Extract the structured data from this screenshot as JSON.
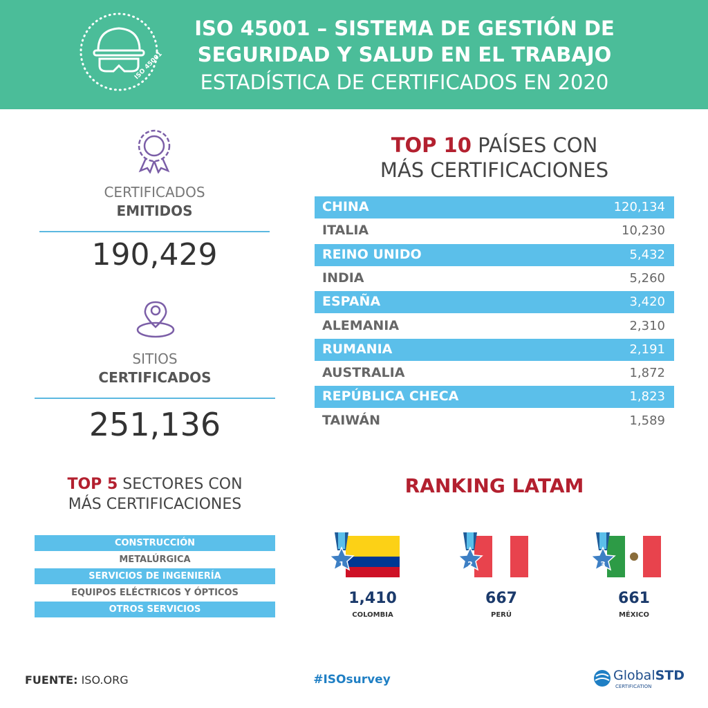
{
  "header": {
    "title_line1": "ISO 45001 – SISTEMA DE GESTIÓN DE",
    "title_line2": "SEGURIDAD Y SALUD EN EL TRABAJO",
    "subtitle": "ESTADÍSTICA DE CERTIFICADOS EN 2020",
    "badge_text": "ISO 45001"
  },
  "stats": [
    {
      "label_light": "CERTIFICADOS",
      "label_bold": "EMITIDOS",
      "value": "190,429"
    },
    {
      "label_light": "SITIOS",
      "label_bold": "CERTIFICADOS",
      "value": "251,136"
    }
  ],
  "top_countries": {
    "title_highlight": "TOP 10",
    "title_rest": "PAÍSES CON",
    "title_line2": "MÁS CERTIFICACIONES",
    "rows": [
      [
        "CHINA",
        "120,134"
      ],
      [
        "ITALIA",
        "10,230"
      ],
      [
        "REINO UNIDO",
        "5,432"
      ],
      [
        "INDIA",
        "5,260"
      ],
      [
        "ESPAÑA",
        "3,420"
      ],
      [
        "ALEMANIA",
        "2,310"
      ],
      [
        "RUMANIA",
        "2,191"
      ],
      [
        "AUSTRALIA",
        "1,872"
      ],
      [
        "REPÚBLICA CHECA",
        "1,823"
      ],
      [
        "TAIWÁN",
        "1,589"
      ]
    ]
  },
  "top_sectors": {
    "title_highlight": "TOP 5",
    "title_rest": "SECTORES CON",
    "title_line2": "MÁS CERTIFICACIONES",
    "items": [
      "CONSTRUCCIÓN",
      "METALÚRGICA",
      "SERVICIOS DE INGENIERÍA",
      "EQUIPOS ELÉCTRICOS Y ÓPTICOS",
      "OTROS SERVICIOS"
    ]
  },
  "ranking": {
    "title": "RANKING LATAM",
    "items": [
      {
        "rank": "1",
        "value": "1,410",
        "country": "COLOMBIA"
      },
      {
        "rank": "2",
        "value": "667",
        "country": "PERÚ"
      },
      {
        "rank": "3",
        "value": "661",
        "country": "MÉXICO"
      }
    ]
  },
  "footer": {
    "source_label": "FUENTE:",
    "source": "ISO.ORG",
    "hashtag": "#ISOsurvey",
    "logo_main": "Global",
    "logo_bold": "STD",
    "logo_sub": "CERTIFICATION"
  }
}
